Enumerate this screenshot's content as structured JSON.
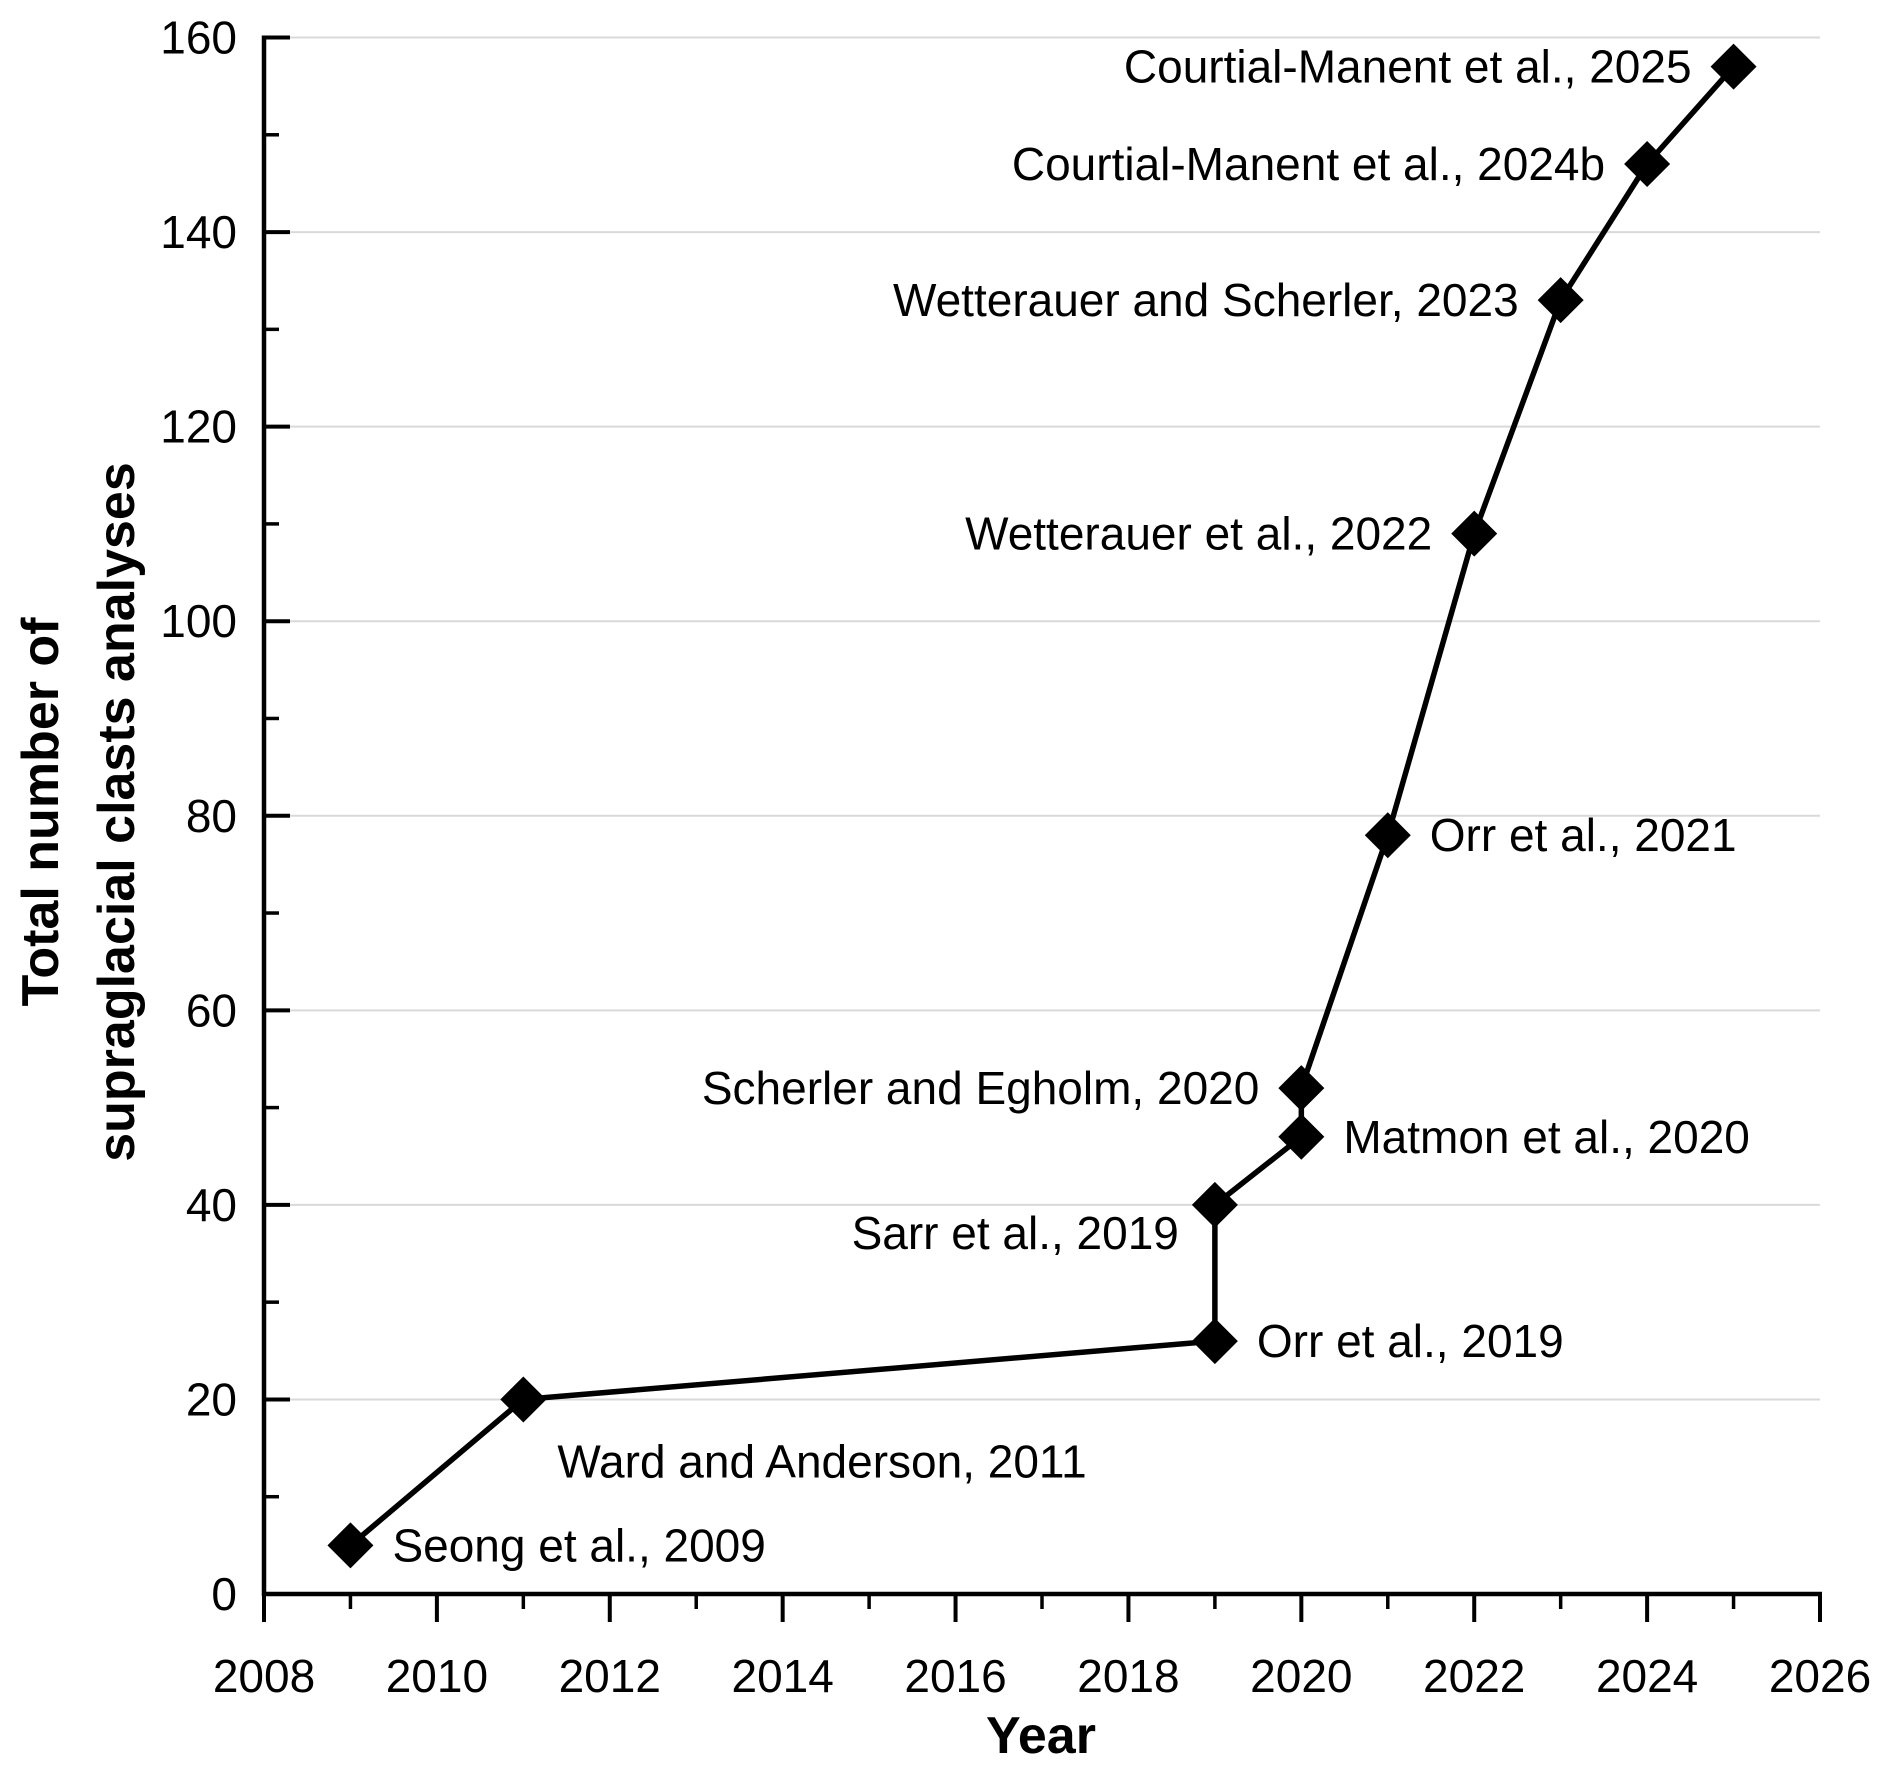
{
  "chart_data": {
    "type": "line",
    "title": "",
    "xlabel": "Year",
    "ylabel": "Total number of supraglacial clasts analyses",
    "ylabel_lines": [
      "Total number of",
      "supraglacial clasts analyses"
    ],
    "xlim": [
      2008,
      2026
    ],
    "ylim": [
      0,
      160
    ],
    "x_major_ticks": [
      2008,
      2010,
      2012,
      2014,
      2016,
      2018,
      2020,
      2022,
      2024,
      2026
    ],
    "x_minor_ticks": [
      2009,
      2011,
      2013,
      2015,
      2017,
      2019,
      2021,
      2023,
      2025
    ],
    "y_major_ticks": [
      0,
      20,
      40,
      60,
      80,
      100,
      120,
      140,
      160
    ],
    "y_minor_ticks": [
      10,
      30,
      50,
      70,
      90,
      110,
      130,
      150
    ],
    "grid": "horizontal-major-only",
    "legend": "none",
    "marker": "filled-diamond",
    "colors": {
      "line": "#000000",
      "marker": "#000000",
      "grid": "#d9d9d9",
      "axis": "#000000",
      "text": "#000000",
      "background": "#ffffff"
    },
    "points": [
      {
        "x": 2009,
        "y": 5,
        "label": "Seong et al., 2009",
        "label_side": "right"
      },
      {
        "x": 2011,
        "y": 20,
        "label": "Ward and Anderson, 2011",
        "label_side": "below-right"
      },
      {
        "x": 2019,
        "y": 26,
        "label": "Orr et al., 2019",
        "label_side": "right"
      },
      {
        "x": 2019,
        "y": 40,
        "label": "Sarr et al., 2019",
        "label_side": "left-below"
      },
      {
        "x": 2020,
        "y": 47,
        "label": "Matmon et al., 2020",
        "label_side": "right"
      },
      {
        "x": 2020,
        "y": 52,
        "label": "Scherler and Egholm, 2020",
        "label_side": "left"
      },
      {
        "x": 2021,
        "y": 78,
        "label": "Orr et al., 2021",
        "label_side": "right"
      },
      {
        "x": 2022,
        "y": 109,
        "label": "Wetterauer et al., 2022",
        "label_side": "left"
      },
      {
        "x": 2023,
        "y": 133,
        "label": "Wetterauer and Scherler, 2023",
        "label_side": "left"
      },
      {
        "x": 2024,
        "y": 147,
        "label": "Courtial-Manent et al., 2024b",
        "label_side": "left"
      },
      {
        "x": 2025,
        "y": 157,
        "label": "Courtial-Manent et al., 2025",
        "label_side": "left"
      }
    ]
  }
}
